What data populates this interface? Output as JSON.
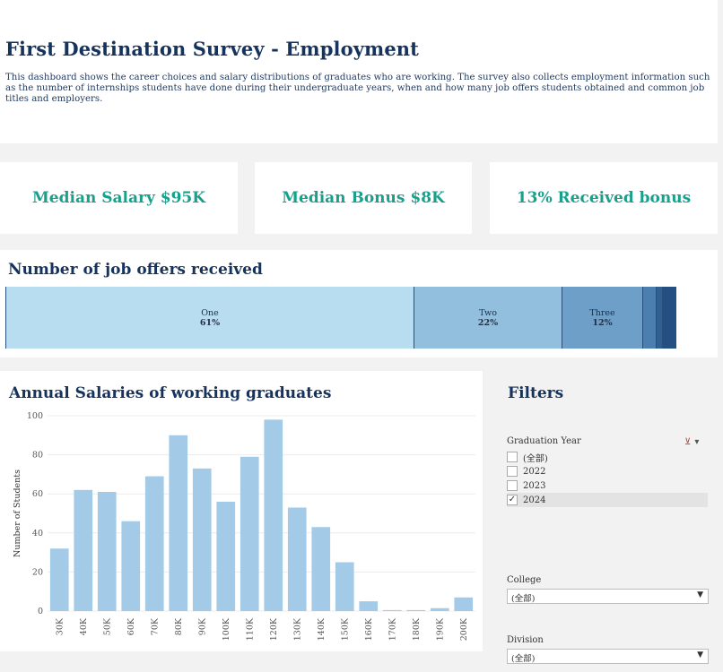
{
  "header": {
    "title": "First Destination Survey - Employment",
    "description": "This dashboard shows the career choices and salary distributions of graduates who are working. The survey also collects employment information such as the number of internships students have done during their undergraduate years, when and how many job offers students obtained and common job titles and employers."
  },
  "kpis": {
    "median_salary": "Median Salary $95K",
    "median_bonus": "Median Bonus $8K",
    "received_bonus": "13% Received bonus"
  },
  "offers": {
    "title": "Number of job offers received",
    "segments": [
      {
        "label": "One",
        "pct_label": "61%",
        "share": 0.61,
        "color": "#b8dcf0"
      },
      {
        "label": "Two",
        "pct_label": "22%",
        "share": 0.22,
        "color": "#93bfdf"
      },
      {
        "label": "Three",
        "pct_label": "12%",
        "share": 0.12,
        "color": "#6d9fc9"
      },
      {
        "label": "",
        "pct_label": "",
        "share": 0.02,
        "color": "#4a7fb0"
      },
      {
        "label": "",
        "pct_label": "",
        "share": 0.01,
        "color": "#2f5f93"
      },
      {
        "label": "",
        "pct_label": "",
        "share": 0.02,
        "color": "#244f82"
      }
    ]
  },
  "salaries": {
    "title": "Annual Salaries of working graduates"
  },
  "chart_data": {
    "type": "bar",
    "title": "Annual Salaries of working graduates",
    "xlabel": "",
    "ylabel": "Number of Students",
    "categories": [
      "30K",
      "40K",
      "50K",
      "60K",
      "70K",
      "80K",
      "90K",
      "100K",
      "110K",
      "120K",
      "130K",
      "140K",
      "150K",
      "160K",
      "170K",
      "180K",
      "190K",
      "200K"
    ],
    "values": [
      32,
      62,
      61,
      46,
      69,
      90,
      73,
      56,
      79,
      98,
      53,
      43,
      25,
      5,
      0.5,
      0.5,
      1.5,
      7
    ],
    "ylim": [
      0,
      100
    ],
    "yticks": [
      0,
      20,
      40,
      60,
      80,
      100
    ],
    "grid": true,
    "bar_color": "#a3cbe8"
  },
  "filters": {
    "title": "Filters",
    "graduation_year": {
      "label": "Graduation Year",
      "options": [
        {
          "label": "(全部)",
          "checked": false
        },
        {
          "label": "2022",
          "checked": false
        },
        {
          "label": "2023",
          "checked": false
        },
        {
          "label": "2024",
          "checked": true
        }
      ]
    },
    "college": {
      "label": "College",
      "value": "(全部)"
    },
    "division": {
      "label": "Division",
      "value": "(全部)"
    }
  }
}
